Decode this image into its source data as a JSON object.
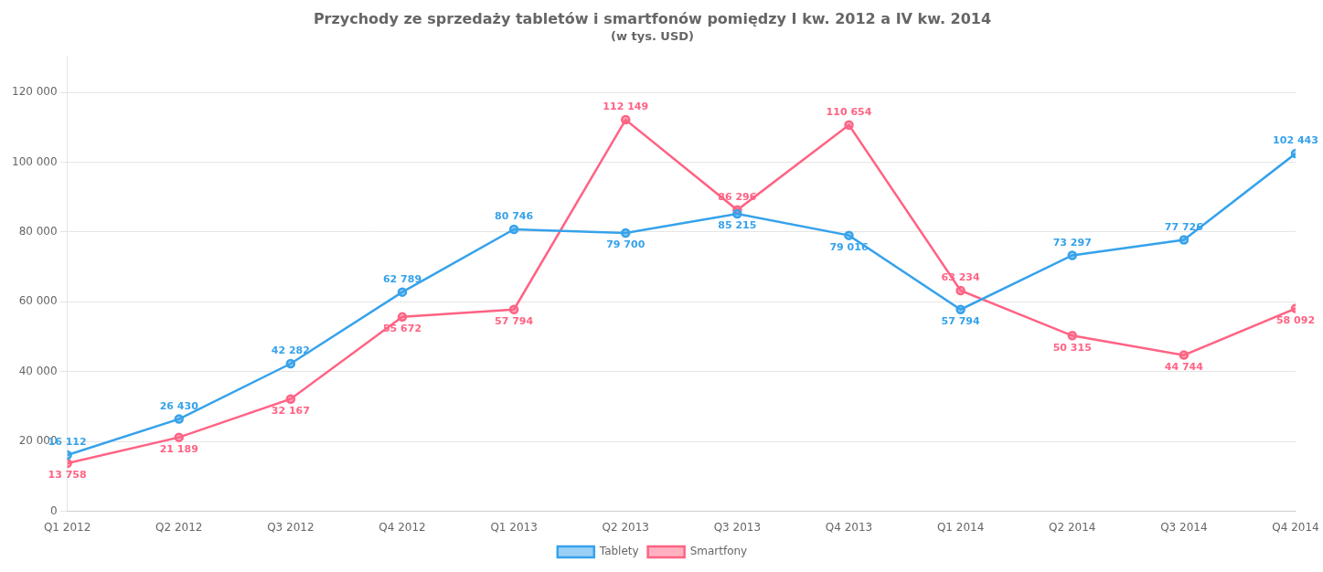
{
  "chart_data": {
    "type": "line",
    "title": "Przychody ze sprzedaży tabletów i smartfonów pomiędzy I kw. 2012 a IV kw. 2014",
    "subtitle": "(w tys. USD)",
    "categories": [
      "Q1 2012",
      "Q2 2012",
      "Q3 2012",
      "Q4 2012",
      "Q1 2013",
      "Q2 2013",
      "Q3 2013",
      "Q4 2013",
      "Q1 2014",
      "Q2 2014",
      "Q3 2014",
      "Q4 2014"
    ],
    "series": [
      {
        "name": "Tablety",
        "values": [
          16112,
          26430,
          42282,
          62789,
          80746,
          79700,
          85215,
          79016,
          57794,
          73297,
          77726,
          102443
        ],
        "value_labels": [
          "16 112",
          "26 430",
          "42 282",
          "62 789",
          "80 746",
          "79 700",
          "85 215",
          "79 016",
          "57 794",
          "73 297",
          "77 726",
          "102 443"
        ]
      },
      {
        "name": "Smartfony",
        "values": [
          13758,
          21189,
          32167,
          55672,
          57794,
          112149,
          86296,
          110654,
          63234,
          50315,
          44744,
          58092
        ],
        "value_labels": [
          "13 758",
          "21 189",
          "32 167",
          "55 672",
          "57 794",
          "112 149",
          "86 296",
          "110 654",
          "63 234",
          "50 315",
          "44 744",
          "58 092"
        ]
      }
    ],
    "ylim": [
      0,
      130000
    ],
    "yticks": [
      0,
      {
        "value": 20000,
        "label": "20 000"
      },
      {
        "value": 40000,
        "label": "40 000"
      },
      {
        "value": 60000,
        "label": "60 000"
      },
      {
        "value": 80000,
        "label": "80 000"
      },
      {
        "value": 100000,
        "label": "100 000"
      },
      {
        "value": 120000,
        "label": "120 000"
      }
    ],
    "grid": true,
    "legend": "bottom",
    "data_labels": true,
    "marker": "circle",
    "line_style": "solid"
  }
}
